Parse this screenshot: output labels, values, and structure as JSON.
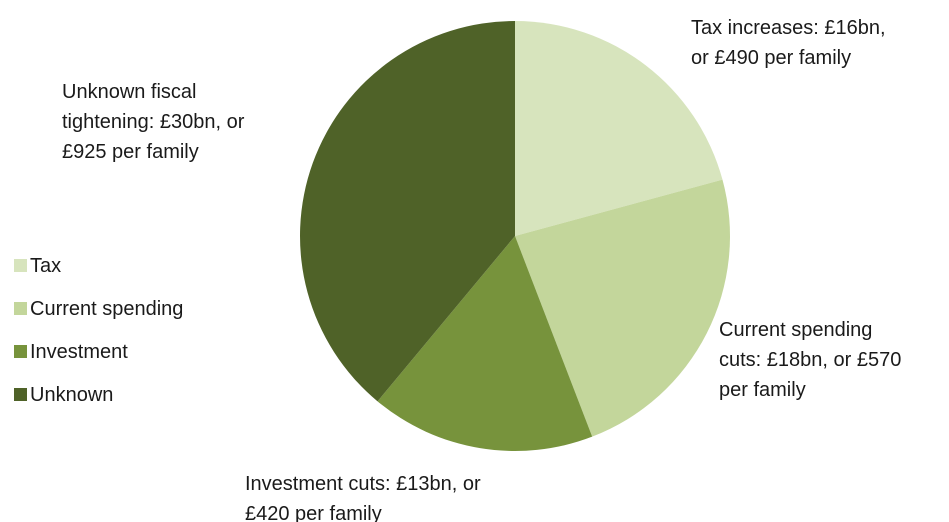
{
  "chart_data": {
    "type": "pie",
    "categories": [
      "Tax",
      "Current spending",
      "Investment",
      "Unknown"
    ],
    "values": [
      16,
      18,
      13,
      30
    ],
    "unit": "£bn",
    "colors": [
      "#d7e4bd",
      "#c3d69b",
      "#77933c",
      "#4f6228"
    ],
    "start_angle_deg": 0,
    "direction": "clockwise",
    "legend": {
      "placement": "left",
      "entries": [
        "Tax",
        "Current spending",
        "Investment",
        "Unknown"
      ]
    },
    "annotations": [
      [
        "Tax increases:  £16bn,",
        "or £490 per family"
      ],
      [
        "Current spending",
        "cuts:  £18bn, or £570",
        "per family"
      ],
      [
        "Investment cuts:  £13bn, or",
        "£420 per family"
      ],
      [
        "Unknown fiscal",
        "tightening:  £30bn, or",
        "£925 per family"
      ]
    ]
  }
}
